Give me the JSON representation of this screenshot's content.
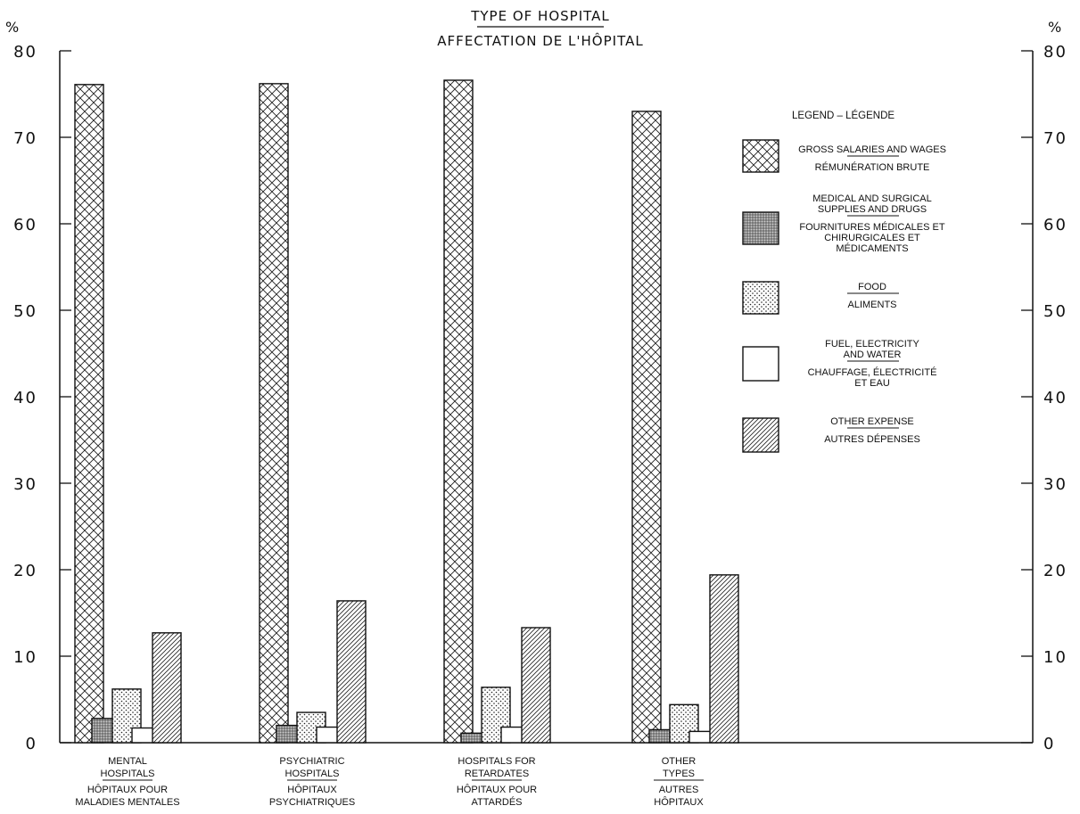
{
  "chart_data": {
    "type": "bar",
    "title": "TYPE OF HOSPITAL",
    "subtitle": "AFFECTATION DE L'HÔPITAL",
    "ylabel": "%",
    "ylabel_right": "%",
    "ylim": [
      0,
      80
    ],
    "yticks": [
      0,
      10,
      20,
      30,
      40,
      50,
      60,
      70,
      80
    ],
    "grid": false,
    "legend_title": "LEGEND – LÉGENDE",
    "legend_position": "right",
    "categories": [
      {
        "en": [
          "MENTAL",
          "HOSPITALS"
        ],
        "fr": [
          "HÔPITAUX POUR",
          "MALADIES MENTALES"
        ]
      },
      {
        "en": [
          "PSYCHIATRIC",
          "HOSPITALS"
        ],
        "fr": [
          "HÔPITAUX",
          "PSYCHIATRIQUES"
        ]
      },
      {
        "en": [
          "HOSPITALS FOR",
          "RETARDATES"
        ],
        "fr": [
          "HÔPITAUX POUR",
          "ATTARDÉS"
        ]
      },
      {
        "en": [
          "OTHER",
          "TYPES"
        ],
        "fr": [
          "AUTRES",
          "HÔPITAUX"
        ]
      }
    ],
    "series": [
      {
        "name_en": [
          "GROSS SALARIES AND WAGES"
        ],
        "name_fr": [
          "RÉMUNÉRATION BRUTE"
        ],
        "pattern": "crosshatch",
        "values": [
          76.1,
          76.2,
          76.6,
          73.0
        ]
      },
      {
        "name_en": [
          "MEDICAL AND SURGICAL",
          "SUPPLIES AND DRUGS"
        ],
        "name_fr": [
          "FOURNITURES MÉDICALES ET",
          "CHIRURGICALES ET",
          "MÉDICAMENTS"
        ],
        "pattern": "dense",
        "values": [
          2.8,
          2.0,
          1.1,
          1.5
        ]
      },
      {
        "name_en": [
          "FOOD"
        ],
        "name_fr": [
          "ALIMENTS"
        ],
        "pattern": "dots",
        "values": [
          6.2,
          3.5,
          6.4,
          4.4
        ]
      },
      {
        "name_en": [
          "FUEL, ELECTRICITY",
          "AND WATER"
        ],
        "name_fr": [
          "CHAUFFAGE, ÉLECTRICITÉ",
          "ET EAU"
        ],
        "pattern": "empty",
        "values": [
          1.7,
          1.8,
          1.8,
          1.3
        ]
      },
      {
        "name_en": [
          "OTHER EXPENSE"
        ],
        "name_fr": [
          "AUTRES DÉPENSES"
        ],
        "pattern": "diagonal",
        "values": [
          12.7,
          16.4,
          13.3,
          19.4
        ]
      }
    ]
  }
}
